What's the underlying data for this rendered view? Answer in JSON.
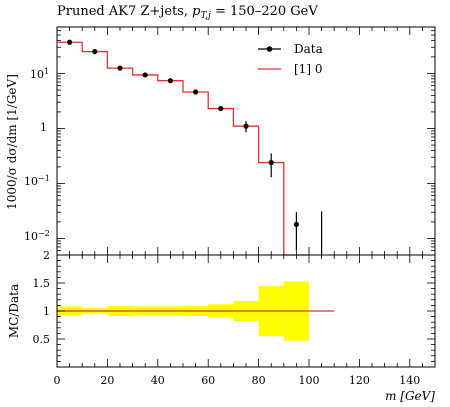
{
  "chart_data": [
    {
      "type": "line",
      "title_main": "Pruned AK7 Z+jets, ",
      "title_cut_var": "p",
      "title_cut_sub": "T,j",
      "title_cut_range": " = 150–220 GeV",
      "ylabel": "1000/σ dσ/dm [1/GeV]",
      "yscale": "log",
      "ylim": [
        0.005,
        70
      ],
      "xlim": [
        0,
        150
      ],
      "y_tick_labels": [
        "10^1",
        "1",
        "10^-1",
        "10^-2"
      ],
      "legend": {
        "position": "top-right",
        "data_label": "Data",
        "mc_label": "[1] 0"
      },
      "data_series": {
        "name": "Data",
        "x": [
          5,
          15,
          25,
          35,
          45,
          55,
          65,
          75,
          85,
          95,
          105
        ],
        "y": [
          37,
          25,
          12.5,
          9.4,
          7.4,
          4.6,
          2.3,
          1.1,
          0.24,
          0.018,
          null
        ],
        "y_err_low": [
          1.0,
          0.7,
          0.5,
          0.4,
          0.35,
          0.25,
          0.15,
          0.25,
          0.11,
          0.012,
          null
        ],
        "y_err_high": [
          1.0,
          0.7,
          0.5,
          0.4,
          0.35,
          0.25,
          0.15,
          0.25,
          0.11,
          0.012,
          0.031
        ]
      },
      "mc_series": {
        "name": "[1] 0",
        "color": "#e8312a",
        "bin_edges": [
          0,
          10,
          20,
          30,
          40,
          50,
          60,
          70,
          80,
          90,
          100
        ],
        "values": [
          37,
          25,
          12.5,
          9.4,
          7.4,
          4.6,
          2.3,
          1.1,
          0.24,
          0.005
        ]
      }
    },
    {
      "type": "area",
      "ylabel": "MC/Data",
      "xlabel": "m [GeV]",
      "xlim": [
        0,
        150
      ],
      "ylim": [
        0,
        2
      ],
      "x_ticks": [
        0,
        20,
        40,
        60,
        80,
        100,
        120,
        140
      ],
      "y_ticks": [
        0.5,
        1,
        1.5,
        2
      ],
      "y_tick_labels": [
        "0.5",
        "1",
        "1.5",
        "2"
      ],
      "band_color": "#ffff00",
      "band": {
        "bin_edges": [
          0,
          10,
          20,
          30,
          40,
          50,
          60,
          70,
          80,
          90,
          100
        ],
        "low": [
          0.92,
          0.95,
          0.91,
          0.92,
          0.92,
          0.91,
          0.88,
          0.82,
          0.55,
          0.47
        ],
        "high": [
          1.08,
          1.05,
          1.09,
          1.08,
          1.08,
          1.09,
          1.12,
          1.18,
          1.45,
          1.53
        ]
      },
      "ratio_line": {
        "x": [
          0,
          110
        ],
        "y": [
          1,
          1
        ],
        "color": "#e8312a"
      }
    }
  ]
}
